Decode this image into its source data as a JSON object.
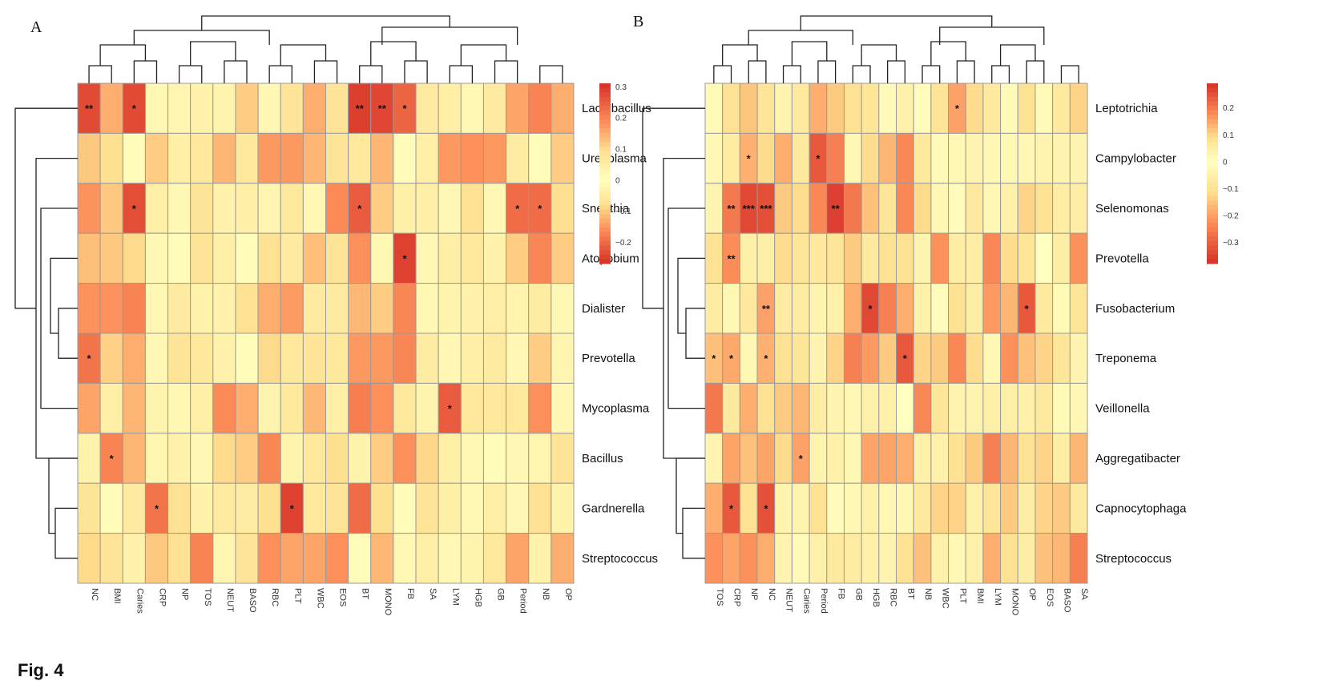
{
  "caption": "Fig. 4",
  "chart_data": [
    {
      "type": "heatmap",
      "panel": "A",
      "title": "A",
      "rows": [
        "Lactobacillus",
        "Ureaplasma",
        "Sneathia",
        "Atopobium",
        "Dialister",
        "Prevotella",
        "Mycoplasma",
        "Bacillus",
        "Gardnerella",
        "Streptococcus"
      ],
      "columns": [
        "NC",
        "BMI",
        "Caries",
        "CRP",
        "NP",
        "TOS",
        "NEUT",
        "BASO",
        "RBC",
        "PLT",
        "WBC",
        "EOS",
        "BT",
        "MONO",
        "FB",
        "SA",
        "LYM",
        "HGB",
        "GB",
        "Period",
        "NB",
        "OP"
      ],
      "values": [
        [
          -0.24,
          -0.13,
          -0.24,
          -0.02,
          0.03,
          0.04,
          -0.03,
          -0.1,
          -0.02,
          0.08,
          0.15,
          0.08,
          0.29,
          0.28,
          0.24,
          0.06,
          0.05,
          0.02,
          0.06,
          0.16,
          0.2,
          0.15
        ],
        [
          0.12,
          -0.08,
          0.01,
          -0.1,
          0.05,
          -0.06,
          0.14,
          -0.06,
          -0.15,
          -0.15,
          0.14,
          0.08,
          -0.06,
          0.14,
          -0.01,
          0.05,
          -0.15,
          -0.16,
          -0.15,
          -0.05,
          0.01,
          -0.1
        ],
        [
          0.18,
          0.12,
          0.27,
          0.05,
          0.02,
          0.08,
          0.04,
          0.05,
          0.03,
          0.07,
          -0.02,
          0.19,
          -0.22,
          -0.1,
          -0.04,
          0.05,
          0.02,
          0.09,
          0.02,
          -0.2,
          -0.2,
          -0.08
        ],
        [
          0.13,
          0.12,
          0.1,
          0.02,
          -0.01,
          0.08,
          -0.04,
          0.01,
          0.09,
          0.06,
          0.13,
          0.08,
          -0.16,
          0.02,
          -0.25,
          -0.02,
          0.05,
          -0.06,
          0.04,
          -0.1,
          -0.17,
          -0.1
        ],
        [
          0.18,
          0.18,
          0.2,
          -0.02,
          0.06,
          0.04,
          0.04,
          0.09,
          0.15,
          0.17,
          0.06,
          0.06,
          -0.12,
          -0.1,
          -0.17,
          0.02,
          -0.03,
          0.04,
          0.05,
          -0.03,
          -0.05,
          0.02
        ],
        [
          0.22,
          0.11,
          0.15,
          -0.02,
          0.08,
          0.07,
          0.04,
          0.01,
          0.1,
          0.07,
          0.08,
          0.07,
          -0.15,
          -0.15,
          -0.17,
          -0.05,
          -0.02,
          0.05,
          0.06,
          -0.02,
          -0.1,
          0.03
        ],
        [
          0.16,
          0.05,
          0.14,
          -0.03,
          0.02,
          0.05,
          0.19,
          0.15,
          -0.03,
          -0.06,
          -0.12,
          0.05,
          -0.18,
          -0.16,
          -0.06,
          -0.03,
          -0.22,
          -0.06,
          -0.06,
          0.07,
          -0.16,
          -0.02
        ],
        [
          0.04,
          0.2,
          0.14,
          0.03,
          0.04,
          0.02,
          0.1,
          -0.1,
          -0.17,
          -0.03,
          -0.06,
          -0.08,
          0.04,
          -0.1,
          -0.16,
          -0.09,
          -0.04,
          0.02,
          0.01,
          -0.02,
          0.03,
          -0.07
        ],
        [
          0.08,
          0.01,
          0.06,
          0.22,
          0.09,
          0.04,
          0.06,
          -0.05,
          -0.08,
          -0.25,
          -0.06,
          -0.07,
          -0.2,
          -0.08,
          -0.01,
          0.08,
          -0.04,
          0.02,
          0.05,
          -0.02,
          0.09,
          0.04
        ],
        [
          0.1,
          0.08,
          0.04,
          0.12,
          0.09,
          0.2,
          0.03,
          0.08,
          -0.16,
          -0.14,
          -0.14,
          -0.16,
          -0.01,
          -0.12,
          -0.02,
          0.05,
          0.02,
          -0.03,
          -0.06,
          -0.14,
          0.04,
          0.15
        ]
      ],
      "significance": [
        {
          "row": "Lactobacillus",
          "col": "NC",
          "stars": "**"
        },
        {
          "row": "Lactobacillus",
          "col": "Caries",
          "stars": "*"
        },
        {
          "row": "Lactobacillus",
          "col": "BT",
          "stars": "**"
        },
        {
          "row": "Lactobacillus",
          "col": "MONO",
          "stars": "**"
        },
        {
          "row": "Lactobacillus",
          "col": "FB",
          "stars": "*"
        },
        {
          "row": "Sneathia",
          "col": "Caries",
          "stars": "*"
        },
        {
          "row": "Sneathia",
          "col": "BT",
          "stars": "*"
        },
        {
          "row": "Sneathia",
          "col": "Period",
          "stars": "*"
        },
        {
          "row": "Sneathia",
          "col": "NB",
          "stars": "*"
        },
        {
          "row": "Atopobium",
          "col": "FB",
          "stars": "*"
        },
        {
          "row": "Prevotella",
          "col": "NC",
          "stars": "*"
        },
        {
          "row": "Mycoplasma",
          "col": "LYM",
          "stars": "*"
        },
        {
          "row": "Bacillus",
          "col": "BMI",
          "stars": "*"
        },
        {
          "row": "Gardnerella",
          "col": "CRP",
          "stars": "*"
        },
        {
          "row": "Gardnerella",
          "col": "PLT",
          "stars": "*"
        }
      ],
      "legend": {
        "ticks": [
          0.3,
          0.2,
          0.1,
          0,
          -0.1,
          -0.2
        ],
        "tick_labels": [
          "0.3",
          "0.2",
          "0.1",
          "0",
          "−0.1",
          "−0.2"
        ],
        "range": [
          -0.27,
          0.31
        ],
        "placement": "right"
      },
      "colors": {
        "low": "#4575b4",
        "mid": "#ffffbf",
        "high": "#d73027"
      }
    },
    {
      "type": "heatmap",
      "panel": "B",
      "title": "B",
      "rows": [
        "Leptotrichia",
        "Campylobacter",
        "Selenomonas",
        "Prevotella",
        "Fusobacterium",
        "Treponema",
        "Veillonella",
        "Aggregatibacter",
        "Capnocytophaga",
        "Streptococcus"
      ],
      "columns": [
        "TOS",
        "CRP",
        "NP",
        "NC",
        "NEUT",
        "Caries",
        "Period",
        "FB",
        "GB",
        "HGB",
        "RBC",
        "BT",
        "NB",
        "WBC",
        "PLT",
        "BMI",
        "LYM",
        "MONO",
        "OP",
        "EOS",
        "BASO",
        "SA"
      ],
      "values": [
        [
          -0.02,
          0.08,
          -0.15,
          -0.1,
          0.03,
          0.06,
          0.14,
          0.11,
          0.08,
          0.07,
          -0.02,
          0.04,
          0.01,
          -0.1,
          -0.2,
          -0.12,
          0.06,
          -0.02,
          0.08,
          -0.02,
          0.06,
          0.1
        ],
        [
          0.02,
          -0.07,
          -0.18,
          -0.12,
          0.14,
          0.06,
          0.24,
          0.19,
          0.02,
          0.09,
          0.13,
          0.18,
          -0.08,
          -0.02,
          -0.03,
          -0.04,
          0.02,
          0.02,
          -0.03,
          0.03,
          -0.04,
          -0.04
        ],
        [
          -0.04,
          -0.26,
          -0.34,
          -0.33,
          0.11,
          0.09,
          0.18,
          0.27,
          0.2,
          0.12,
          0.07,
          0.18,
          -0.12,
          -0.03,
          0.01,
          -0.08,
          0.02,
          0.04,
          0.1,
          0.08,
          0.05,
          0.05
        ],
        [
          0.08,
          -0.23,
          -0.06,
          -0.06,
          0.09,
          0.07,
          -0.08,
          0.07,
          0.11,
          0.06,
          0.08,
          0.08,
          0.03,
          0.17,
          0.05,
          0.05,
          0.18,
          0.09,
          0.07,
          0.0,
          0.05,
          0.17
        ],
        [
          -0.07,
          0.02,
          -0.08,
          -0.2,
          -0.07,
          -0.07,
          0.03,
          0.04,
          0.14,
          0.26,
          0.19,
          0.14,
          0.04,
          0.01,
          0.08,
          0.05,
          0.16,
          0.13,
          0.24,
          0.06,
          -0.02,
          0.07
        ],
        [
          -0.16,
          -0.19,
          0.02,
          -0.18,
          0.08,
          0.07,
          0.03,
          0.1,
          0.19,
          0.16,
          0.11,
          0.24,
          0.1,
          0.11,
          0.18,
          0.09,
          0.02,
          0.17,
          0.12,
          0.1,
          0.07,
          0.03
        ],
        [
          0.2,
          0.06,
          0.14,
          0.08,
          0.11,
          0.13,
          0.05,
          0.03,
          0.02,
          -0.05,
          0.04,
          0.0,
          0.18,
          0.07,
          0.03,
          0.03,
          -0.06,
          -0.06,
          -0.05,
          0.06,
          -0.02,
          -0.03
        ],
        [
          0.03,
          0.15,
          0.12,
          0.15,
          -0.12,
          -0.2,
          0.03,
          0.04,
          0.02,
          0.15,
          0.15,
          0.14,
          0.04,
          0.04,
          0.08,
          0.11,
          0.19,
          0.13,
          0.08,
          0.1,
          0.05,
          0.13
        ],
        [
          0.14,
          0.24,
          0.08,
          0.25,
          0.03,
          0.03,
          0.08,
          -0.01,
          -0.03,
          0.04,
          -0.03,
          0.02,
          -0.08,
          -0.13,
          -0.13,
          -0.05,
          0.07,
          0.11,
          0.05,
          0.1,
          0.11,
          0.06
        ],
        [
          0.17,
          0.15,
          0.17,
          0.14,
          -0.04,
          -0.02,
          0.04,
          0.06,
          -0.07,
          -0.05,
          0.03,
          0.08,
          0.12,
          0.04,
          0.02,
          0.04,
          0.14,
          0.08,
          0.05,
          0.12,
          0.13,
          0.19
        ]
      ],
      "significance": [
        {
          "row": "Leptotrichia",
          "col": "PLT",
          "stars": "*"
        },
        {
          "row": "Campylobacter",
          "col": "NP",
          "stars": "*"
        },
        {
          "row": "Campylobacter",
          "col": "Period",
          "stars": "*"
        },
        {
          "row": "Selenomonas",
          "col": "CRP",
          "stars": "**"
        },
        {
          "row": "Selenomonas",
          "col": "NP",
          "stars": "***"
        },
        {
          "row": "Selenomonas",
          "col": "NC",
          "stars": "***"
        },
        {
          "row": "Selenomonas",
          "col": "FB",
          "stars": "**"
        },
        {
          "row": "Prevotella",
          "col": "CRP",
          "stars": "**"
        },
        {
          "row": "Fusobacterium",
          "col": "NC",
          "stars": "**"
        },
        {
          "row": "Fusobacterium",
          "col": "HGB",
          "stars": "*"
        },
        {
          "row": "Fusobacterium",
          "col": "OP",
          "stars": "*"
        },
        {
          "row": "Treponema",
          "col": "TOS",
          "stars": "*"
        },
        {
          "row": "Treponema",
          "col": "CRP",
          "stars": "*"
        },
        {
          "row": "Treponema",
          "col": "NC",
          "stars": "*"
        },
        {
          "row": "Treponema",
          "col": "BT",
          "stars": "*"
        },
        {
          "row": "Aggregatibacter",
          "col": "Caries",
          "stars": "*"
        },
        {
          "row": "Capnocytophaga",
          "col": "CRP",
          "stars": "*"
        },
        {
          "row": "Capnocytophaga",
          "col": "NC",
          "stars": "*"
        }
      ],
      "legend": {
        "ticks": [
          0.2,
          0.1,
          0,
          -0.1,
          -0.2,
          -0.3
        ],
        "tick_labels": [
          "0.2",
          "0.1",
          "0",
          "−0.1",
          "−0.2",
          "−0.3"
        ],
        "range": [
          -0.38,
          0.29
        ],
        "placement": "right"
      },
      "colors": {
        "low": "#4575b4",
        "mid": "#ffffbf",
        "high": "#d73027"
      }
    }
  ]
}
